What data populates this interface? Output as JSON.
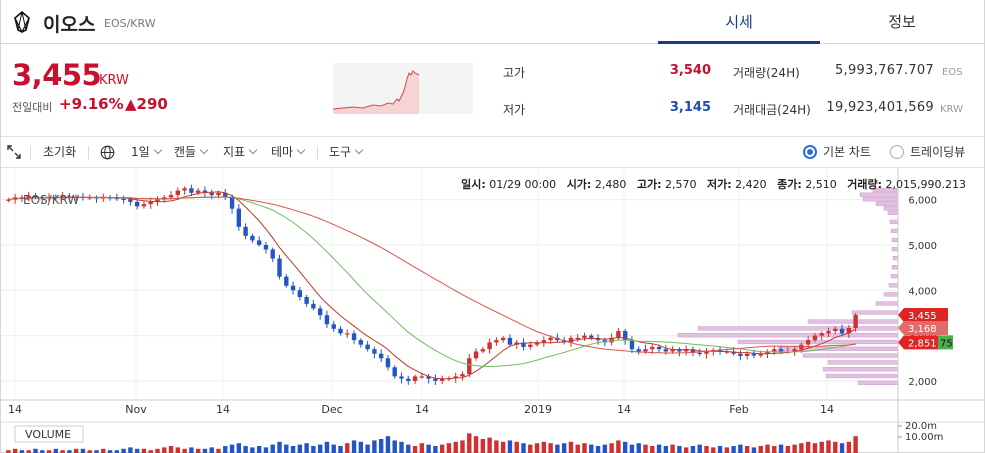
{
  "header": {
    "coin_name": "이오스",
    "pair": "EOS/KRW",
    "tabs": [
      {
        "label": "시세",
        "active": true
      },
      {
        "label": "정보",
        "active": false
      }
    ]
  },
  "summary": {
    "price": "3,455",
    "unit": "KRW",
    "change_label": "전일대비",
    "change_pct": "+9.16%",
    "change_abs": "▲290",
    "high_label": "고가",
    "high": "3,540",
    "low_label": "저가",
    "low": "3,145",
    "volume_label": "거래량(24H)",
    "volume": "5,993,767.707",
    "volume_unit": "EOS",
    "value_label": "거래대금(24H)",
    "value": "19,923,401,569",
    "value_unit": "KRW"
  },
  "toolbar": {
    "reset": "초기화",
    "interval": "1일",
    "candle": "캔들",
    "indicator": "지표",
    "theme": "테마",
    "tools": "도구",
    "basic_chart": "기본 차트",
    "tradingview": "트레이딩뷰"
  },
  "ohlc": {
    "date_label": "일시:",
    "date": "01/29 00:00",
    "open_label": "시가:",
    "open": "2,480",
    "high_label": "고가:",
    "high": "2,570",
    "low_label": "저가:",
    "low": "2,420",
    "close_label": "종가:",
    "close": "2,510",
    "vol_label": "거래량:",
    "vol": "2,015,990.213"
  },
  "colors": {
    "up": "#d0302f",
    "down": "#2356c4",
    "ma_short": "#c0392b",
    "ma_long": "#6cbf5a",
    "accent": "#1a3a8a",
    "profile": "#e3bfe3"
  },
  "chart_data": {
    "type": "candlestick",
    "pair_label": "EOS/KRW",
    "x_ticks": [
      "14",
      "Nov",
      "14",
      "Dec",
      "14",
      "2019",
      "14",
      "Feb",
      "14"
    ],
    "y_ticks": [
      "6,000",
      "5,000",
      "4,000",
      "3,000",
      "2,000"
    ],
    "ylim": [
      1800,
      6300
    ],
    "price_tags": [
      "3,455",
      "3,168",
      "2,851",
      "75"
    ],
    "volume_label": "VOLUME",
    "volume_ticks": [
      "20.0m",
      "10.00m"
    ],
    "closes": [
      6000,
      6050,
      6020,
      6080,
      6050,
      6030,
      6060,
      6040,
      6070,
      6050,
      6060,
      6040,
      6050,
      6030,
      6050,
      6040,
      6020,
      6010,
      5950,
      5850,
      5900,
      5950,
      6000,
      6050,
      6100,
      6200,
      6250,
      6150,
      6200,
      6150,
      6100,
      6150,
      6050,
      5800,
      5400,
      5200,
      5100,
      5000,
      4900,
      4700,
      4300,
      4100,
      4000,
      3850,
      3700,
      3600,
      3450,
      3250,
      3150,
      3050,
      3050,
      2900,
      2800,
      2700,
      2600,
      2500,
      2300,
      2100,
      2050,
      2000,
      2100,
      2100,
      2050,
      2000,
      2050,
      2060,
      2100,
      2150,
      2500,
      2650,
      2700,
      2850,
      2900,
      2950,
      2800,
      2850,
      2750,
      2800,
      2850,
      2900,
      2950,
      2900,
      2850,
      2950,
      2950,
      3000,
      2950,
      2900,
      2850,
      2950,
      3100,
      2900,
      2700,
      2650,
      2700,
      2750,
      2700,
      2650,
      2700,
      2650,
      2700,
      2620,
      2600,
      2650,
      2680,
      2650,
      2650,
      2600,
      2550,
      2600,
      2560,
      2600,
      2650,
      2700,
      2650,
      2650,
      2700,
      2800,
      2900,
      3000,
      3050,
      3100,
      3150,
      3050,
      3168,
      3455
    ],
    "volumes": [
      2,
      3,
      2,
      2,
      3,
      2,
      2,
      3,
      2,
      2,
      3,
      3,
      2,
      2,
      3,
      2,
      2,
      3,
      4,
      3,
      3,
      2,
      3,
      4,
      5,
      4,
      3,
      4,
      3,
      3,
      4,
      3,
      5,
      6,
      7,
      5,
      4,
      5,
      4,
      6,
      8,
      6,
      5,
      6,
      7,
      5,
      6,
      8,
      6,
      5,
      7,
      9,
      8,
      6,
      9,
      10,
      12,
      9,
      8,
      6,
      5,
      7,
      6,
      5,
      6,
      7,
      8,
      9,
      14,
      12,
      10,
      11,
      9,
      8,
      9,
      8,
      7,
      6,
      7,
      8,
      7,
      6,
      7,
      8,
      6,
      7,
      6,
      5,
      6,
      7,
      9,
      8,
      6,
      7,
      6,
      5,
      6,
      5,
      6,
      5,
      4,
      5,
      6,
      5,
      4,
      5,
      4,
      5,
      6,
      5,
      4,
      5,
      6,
      5,
      6,
      5,
      6,
      7,
      8,
      7,
      8,
      9,
      8,
      7,
      8,
      12
    ]
  }
}
